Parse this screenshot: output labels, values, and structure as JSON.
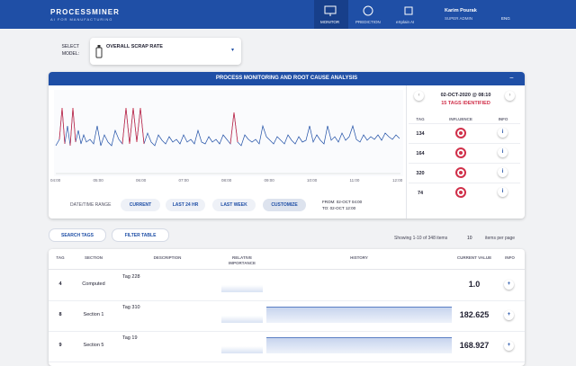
{
  "header": {
    "logo": "PROCESSMINER",
    "tagline": "AI FOR MANUFACTURING",
    "nav": [
      "MONITOR",
      "PREDICTION",
      "eXplain AI"
    ],
    "user_name": "Karim Pourak",
    "user_role": "SUPER ADMIN",
    "language": "ENG"
  },
  "model_select": {
    "label": "SELECT MODEL:",
    "value": "OVERALL SCRAP RATE"
  },
  "panel": {
    "title": "PROCESS MONITORING AND ROOT CAUSE ANALYSIS",
    "x_labels": [
      "04:00",
      "05:00",
      "06:00",
      "07:00",
      "08:00",
      "09:00",
      "10:00",
      "11:00",
      "12:00"
    ],
    "range_label": "DATE/TIME RANGE",
    "range_buttons": [
      "CURRENT",
      "LAST 24 HR",
      "LAST WEEK",
      "CUSTOMIZE"
    ],
    "from": "FROM: 02-OCT 04:00",
    "to": "TO: 02-OCT 12:00",
    "timestamp": "02-OCT-2020 @ 08:10",
    "tags_identified": "15 TAGS IDENTIFIED",
    "tag_headers": [
      "TAG",
      "INFLUENCE",
      "INFO"
    ],
    "tags": [
      "134",
      "164",
      "320",
      "74"
    ]
  },
  "toolbar": {
    "search": "SEARCH TAGS",
    "filter": "FILTER TABLE",
    "showing": "Showing 1-10 of 348 items",
    "per_page_value": "10",
    "per_page": "items per page"
  },
  "table": {
    "headers": [
      "TAG",
      "SECTION",
      "DESCRIPTION",
      "RELATIVE IMPORTANCE",
      "HISTORY",
      "CURRENT VALUE",
      "INFO"
    ],
    "rows": [
      [
        "4",
        "Computed",
        "Tag 228",
        "1.0"
      ],
      [
        "8",
        "Section 1",
        "Tag 310",
        "182.625"
      ],
      [
        "9",
        "Section 5",
        "Tag 19",
        "168.927"
      ]
    ]
  }
}
